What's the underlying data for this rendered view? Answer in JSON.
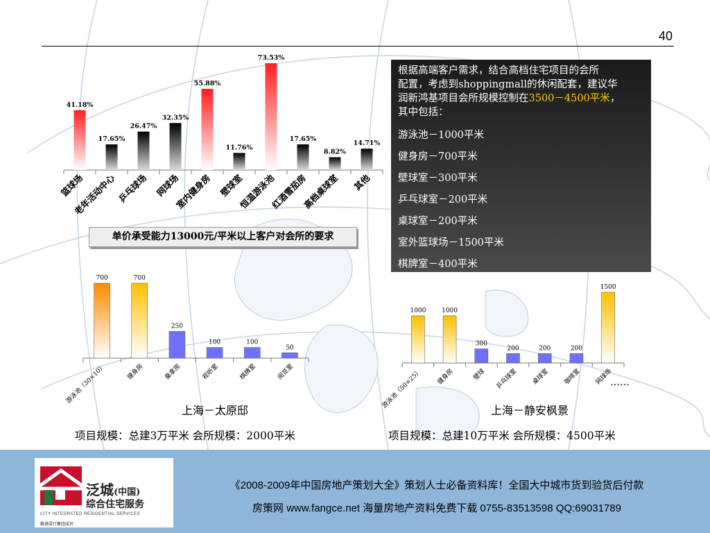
{
  "page": {
    "number": "40"
  },
  "info_box": {
    "intro_lines": [
      "根据高端客户需求，结合高档住宅项目的会所",
      "配置，考虑到shoppingmall的休闲配套，建议华",
      "润新鸿基项目会所规模控制在"
    ],
    "highlight": "3500－4500平米",
    "tail": "，",
    "last_line": "其中包括：",
    "items": [
      "游泳池－1000平米",
      "健身房－700平米",
      "壁球室－300平米",
      "乒乓球室－200平米",
      "桌球室－200平米",
      "室外篮球场－1500平米",
      "棋牌室－400平米"
    ]
  },
  "caption": "单价承受能力13000元/平米以上客户对会所的要求",
  "charts": {
    "left_title": "上海－太原邸",
    "left_scale": "项目规模：总建3万平米  会所规模：2000平米",
    "right_title": "上海－静安枫景",
    "right_scale": "项目规模：总建10万平米  会所规模：4500平米",
    "right_ellipsis": "……"
  },
  "footer": {
    "brand_name": "泛城",
    "brand_country": "(中国)",
    "brand_sub": "综合住宅服务",
    "brand_en": "CITY INTEGRATED RESIDENTIAL SERVICES",
    "brand_member": "戴德梁行集团成员",
    "line1": "《2008-2009年中国房地产策划大全》策划人士必备资料库！全国大中城市货到验货后付款",
    "line2": "房策网 www.fangce.net  海量房地产资料免费下载   0755-83513598  QQ:69031789"
  },
  "colors": {
    "red": "#ff2020",
    "orange": "#ff8a00",
    "gold": "#ffc000",
    "blue": "#7070ff",
    "black": "#000000",
    "footer_blue": "#8eb6d8"
  },
  "chart_data": [
    {
      "type": "bar",
      "categories": [
        "篮球场",
        "老年活动中心",
        "乒乓球场",
        "网球场",
        "室内健身房",
        "壁球室",
        "恒温游泳池",
        "红酒雪茄房",
        "高档桌球室",
        "其他"
      ],
      "values": [
        41.18,
        17.65,
        26.47,
        32.35,
        55.88,
        11.76,
        73.53,
        17.65,
        8.82,
        14.71
      ],
      "labels": [
        "41.18%",
        "17.65%",
        "26.47%",
        "32.35%",
        "55.88%",
        "11.76%",
        "73.53%",
        "17.65%",
        "8.82%",
        "14.71%"
      ],
      "colors": [
        "red",
        "black",
        "black",
        "black",
        "red",
        "black",
        "red",
        "black",
        "black",
        "black"
      ],
      "title": "单价承受能力13000元/平米以上客户对会所的要求",
      "ylim": [
        0,
        75
      ]
    },
    {
      "type": "bar",
      "categories": [
        "游泳池（30×10）",
        "健身房",
        "桑拿房",
        "视听室",
        "棋牌室",
        "阅览室"
      ],
      "values": [
        700,
        700,
        250,
        100,
        100,
        50
      ],
      "colors": [
        "orange",
        "gold",
        "blue",
        "blue",
        "blue",
        "blue"
      ],
      "title": "上海－太原邸",
      "ylim": [
        0,
        700
      ]
    },
    {
      "type": "bar",
      "categories": [
        "游泳池（50×25）",
        "健身房",
        "壁球",
        "乒乓球室",
        "桌球室",
        "咖啡室",
        "网球场"
      ],
      "values": [
        1000,
        1000,
        300,
        200,
        200,
        200,
        1500
      ],
      "colors": [
        "gold",
        "gold",
        "blue",
        "blue",
        "blue",
        "blue",
        "gold"
      ],
      "title": "上海－静安枫景",
      "ylim": [
        0,
        1500
      ]
    }
  ]
}
